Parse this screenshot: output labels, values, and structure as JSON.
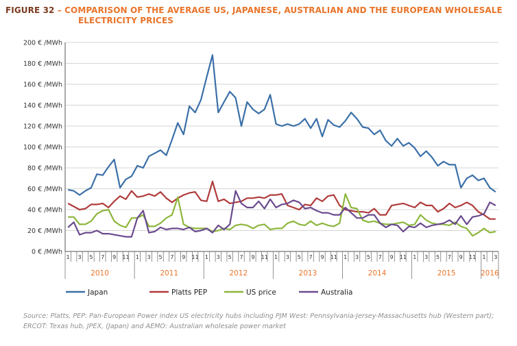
{
  "figure": {
    "label": "FIGURE 32",
    "title_line1": " – COMPARISON OF THE AVERAGE US, JAPANESE, AUSTRALIAN AND THE EUROPEAN WHOLESALE",
    "title_line2": "ELECTRICITY PRICES"
  },
  "source_note": "Source: Platts, PEP: Pan-European Power index US electricity hubs including PJM West: Pennsylvania-Jersey-Massachusetts hub (Western part); ERCOT: Texas hub, JPEX, (Japan) and AEMO: Australian wholesale power market",
  "colors": {
    "japan": "#3a6fa8",
    "platts": "#b03a3a",
    "us": "#8db63c",
    "australia": "#6a4a8e",
    "year_label": "#e8742a",
    "axis": "#555555",
    "grid": "#d4d4d4"
  },
  "chart_data": {
    "type": "line",
    "ylim": [
      0,
      200
    ],
    "yticks": [
      0,
      20,
      40,
      60,
      80,
      100,
      120,
      140,
      160,
      180,
      200
    ],
    "ytick_labels": [
      "0 € /MWh",
      "20 € /MWh",
      "40 € /MWh",
      "60 € /MWh",
      "80 € /MWh",
      "100 € /MWh",
      "120 € /MWh",
      "140 € /MWh",
      "160 € /MWh",
      "180 € /MWh",
      "200 € /MWh"
    ],
    "month_tick_labels": [
      "1",
      "3",
      "5",
      "7",
      "9",
      "11"
    ],
    "last_year_month_tick_labels": [
      "1",
      "3"
    ],
    "years": [
      "2010",
      "2011",
      "2012",
      "2013",
      "2014",
      "2015",
      "2016"
    ],
    "months_count": 75,
    "grid": "horizontal",
    "legend_position": "bottom",
    "series": [
      {
        "name": "Japan",
        "color_key": "japan",
        "values": [
          59,
          58,
          54,
          58,
          61,
          74,
          73,
          81,
          88,
          61,
          69,
          72,
          82,
          80,
          91,
          94,
          97,
          92,
          107,
          123,
          112,
          139,
          133,
          145,
          167,
          188,
          133,
          143,
          153,
          147,
          120,
          143,
          136,
          132,
          136,
          150,
          122,
          120,
          122,
          120,
          122,
          127,
          118,
          127,
          110,
          126,
          121,
          119,
          125,
          133,
          127,
          119,
          118,
          112,
          116,
          106,
          101,
          108,
          101,
          104,
          99,
          91,
          96,
          90,
          82,
          86,
          83,
          83,
          61,
          70,
          73,
          68,
          70,
          61,
          57
        ]
      },
      {
        "name": "Platts PEP",
        "color_key": "platts",
        "values": [
          46,
          43,
          40,
          41,
          45,
          45,
          46,
          42,
          48,
          53,
          50,
          58,
          52,
          53,
          55,
          53,
          57,
          51,
          47,
          51,
          54,
          56,
          57,
          49,
          48,
          67,
          48,
          50,
          46,
          47,
          48,
          51,
          51,
          52,
          51,
          54,
          54,
          55,
          44,
          42,
          40,
          45,
          44,
          51,
          48,
          53,
          54,
          44,
          40,
          39,
          38,
          38,
          37,
          41,
          35,
          35,
          44,
          45,
          46,
          44,
          42,
          47,
          44,
          44,
          38,
          41,
          46,
          42,
          44,
          47,
          44,
          38,
          35,
          31,
          31
        ]
      },
      {
        "name": "US price",
        "color_key": "us",
        "values": [
          33,
          33,
          26,
          26,
          29,
          36,
          39,
          40,
          29,
          25,
          23,
          32,
          32,
          35,
          24,
          24,
          27,
          32,
          35,
          52,
          26,
          23,
          22,
          22,
          22,
          19,
          20,
          22,
          21,
          25,
          26,
          25,
          22,
          25,
          26,
          21,
          22,
          22,
          27,
          29,
          26,
          25,
          29,
          25,
          27,
          25,
          24,
          27,
          55,
          42,
          41,
          30,
          28,
          29,
          27,
          26,
          26,
          27,
          28,
          25,
          26,
          35,
          30,
          27,
          26,
          26,
          25,
          28,
          24,
          22,
          15,
          18,
          22,
          18,
          19
        ]
      },
      {
        "name": "Australia",
        "color_key": "australia",
        "values": [
          23,
          28,
          16,
          18,
          18,
          20,
          17,
          17,
          16,
          15,
          14,
          14,
          32,
          39,
          18,
          19,
          23,
          21,
          22,
          22,
          21,
          23,
          19,
          20,
          22,
          18,
          25,
          21,
          26,
          58,
          46,
          42,
          42,
          48,
          41,
          50,
          42,
          45,
          46,
          49,
          47,
          41,
          42,
          39,
          37,
          37,
          35,
          35,
          42,
          37,
          32,
          32,
          35,
          35,
          27,
          23,
          26,
          25,
          19,
          24,
          23,
          27,
          23,
          25,
          26,
          27,
          30,
          26,
          34,
          26,
          33,
          34,
          36,
          47,
          44
        ]
      }
    ]
  }
}
